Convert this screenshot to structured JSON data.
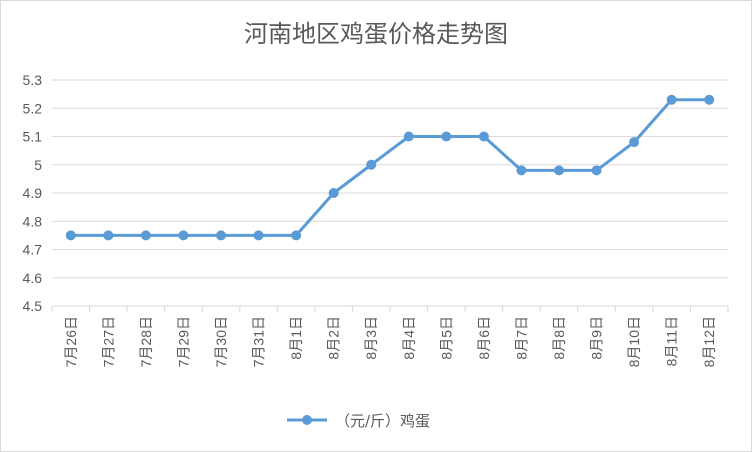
{
  "chart_data": {
    "type": "line",
    "title": "河南地区鸡蛋价格走势图",
    "categories": [
      "7月26日",
      "7月27日",
      "7月28日",
      "7月29日",
      "7月30日",
      "7月31日",
      "8月1日",
      "8月2日",
      "8月3日",
      "8月4日",
      "8月5日",
      "8月6日",
      "8月7日",
      "8月8日",
      "8月9日",
      "8月10日",
      "8月11日",
      "8月12日"
    ],
    "series": [
      {
        "name": "（元/斤）鸡蛋",
        "values": [
          4.75,
          4.75,
          4.75,
          4.75,
          4.75,
          4.75,
          4.75,
          4.9,
          5.0,
          5.1,
          5.1,
          5.1,
          4.98,
          4.98,
          4.98,
          5.08,
          5.23,
          5.23
        ]
      }
    ],
    "yticks": [
      "4.5",
      "4.6",
      "4.7",
      "4.8",
      "4.9",
      "5",
      "5.1",
      "5.2",
      "5.3"
    ],
    "ylim": [
      4.5,
      5.3
    ],
    "grid": true,
    "legend": "bottom",
    "color": "#5b9bd5"
  }
}
